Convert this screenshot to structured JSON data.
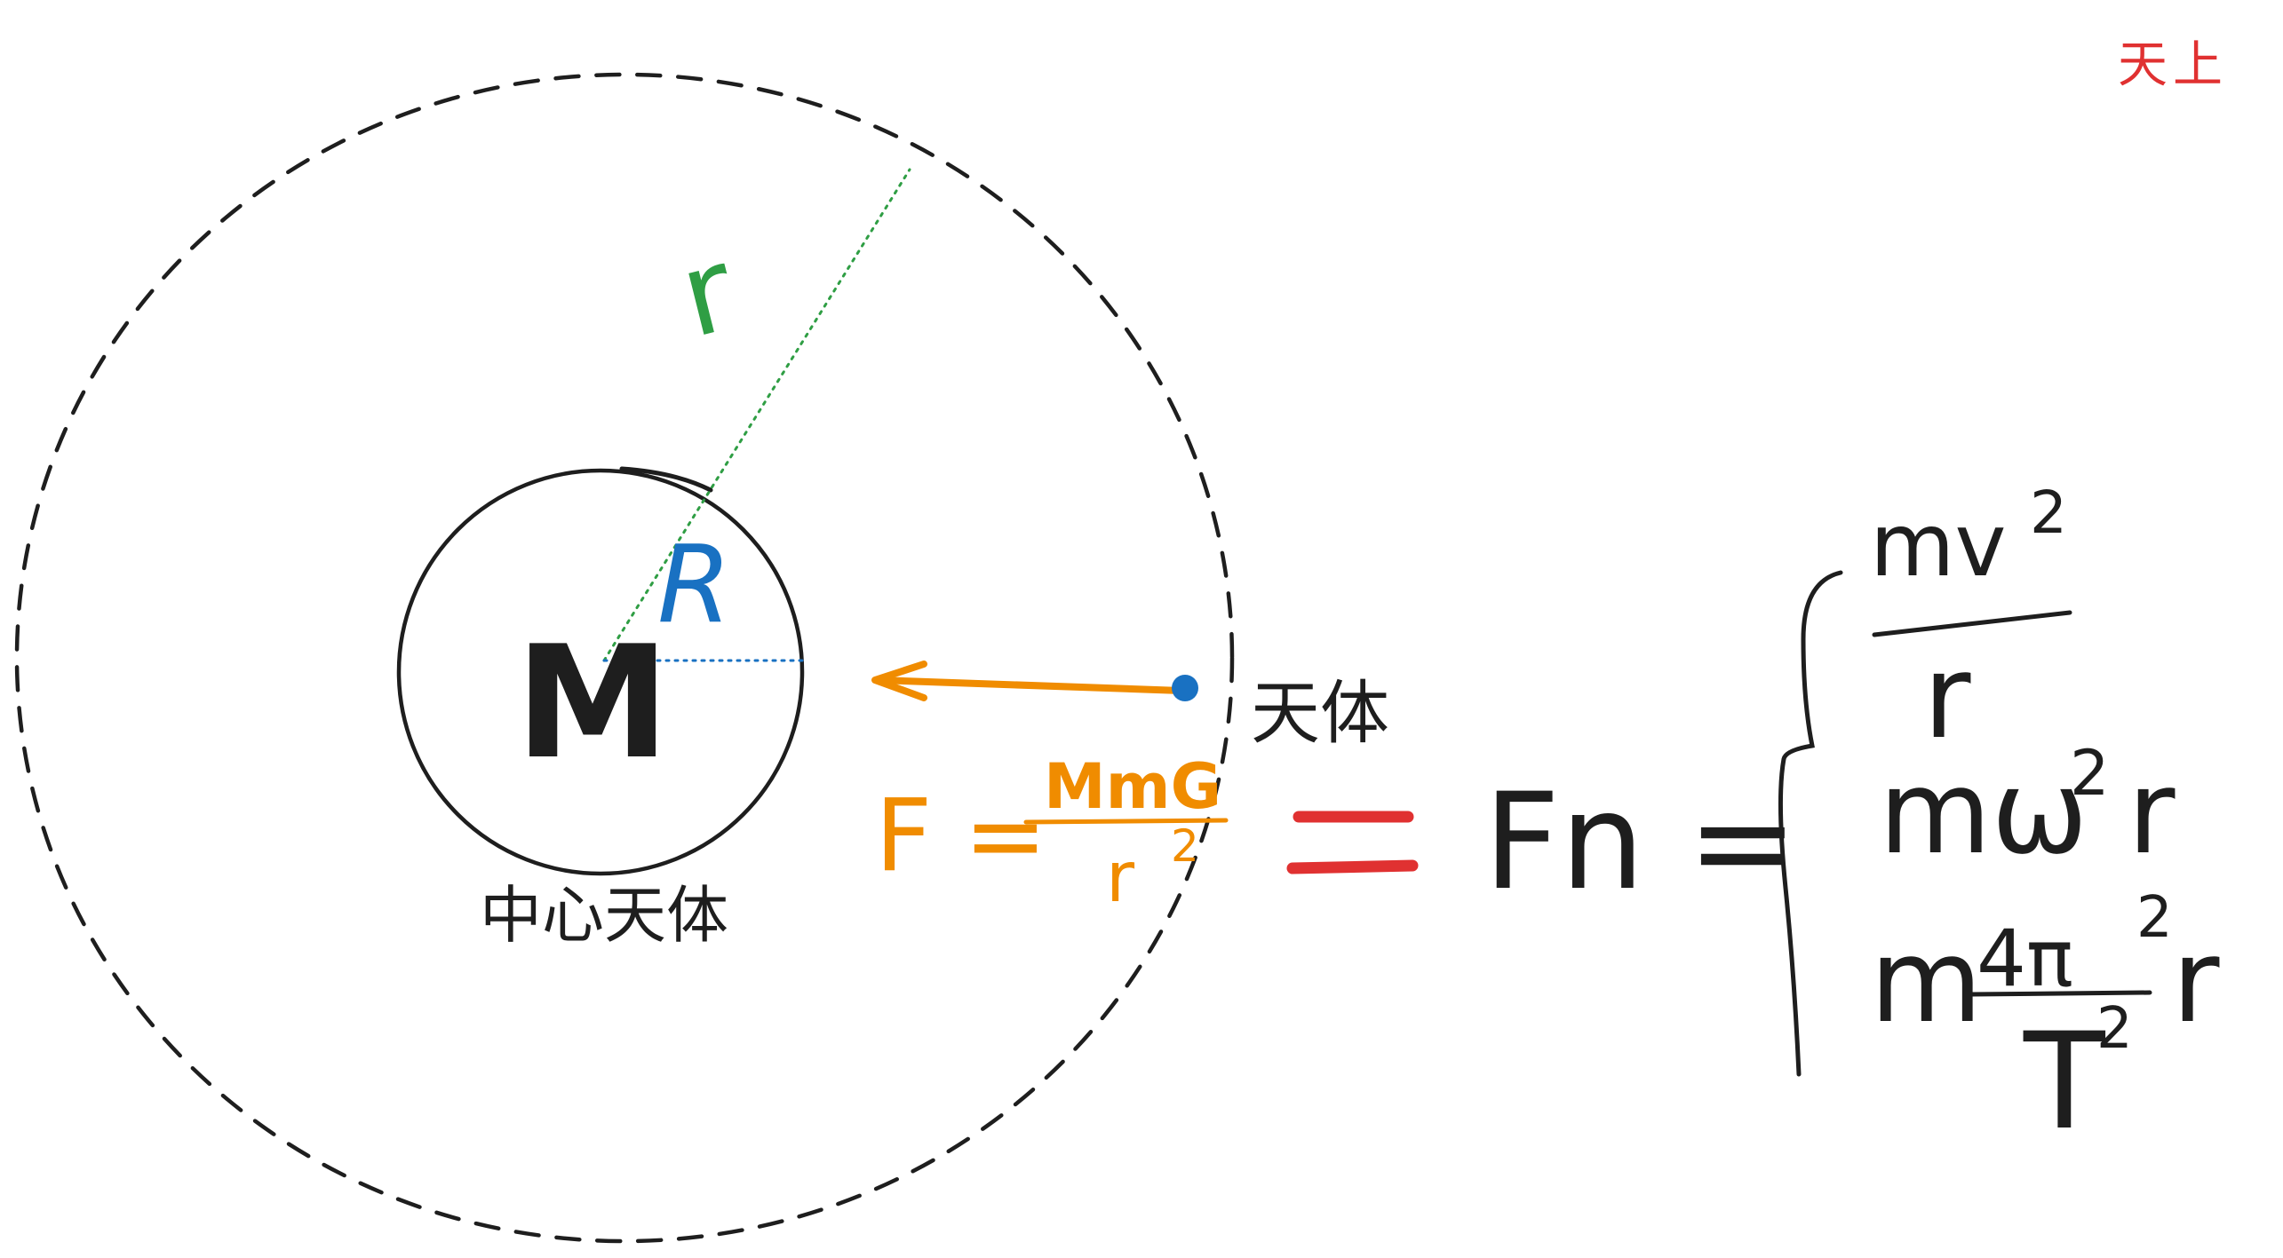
{
  "title": "天上",
  "labels": {
    "central_mass": "M",
    "central_body": "中心天体",
    "planet": "天体",
    "orbit_radius": "r",
    "body_radius": "R"
  },
  "gravity_formula": {
    "lhs": "F =",
    "numerator": "MmG",
    "denominator": "r",
    "exponent": "2"
  },
  "equals": "=",
  "fn_formula": {
    "lhs": "Fn =",
    "case1_numerator": "mv",
    "case1_exponent": "2",
    "case1_denominator": "r",
    "case2": "mω",
    "case2_exponent": "2",
    "case2_tail": "r",
    "case3_prefix": "m",
    "case3_numerator": "4π",
    "case3_num_exponent": "2",
    "case3_denominator": "T",
    "case3_den_exponent": "2",
    "case3_tail": "r"
  },
  "colors": {
    "ink": "#1e1e1e",
    "orange": "#f08c00",
    "green": "#2f9e44",
    "blue": "#1971c2",
    "red": "#e03131"
  }
}
